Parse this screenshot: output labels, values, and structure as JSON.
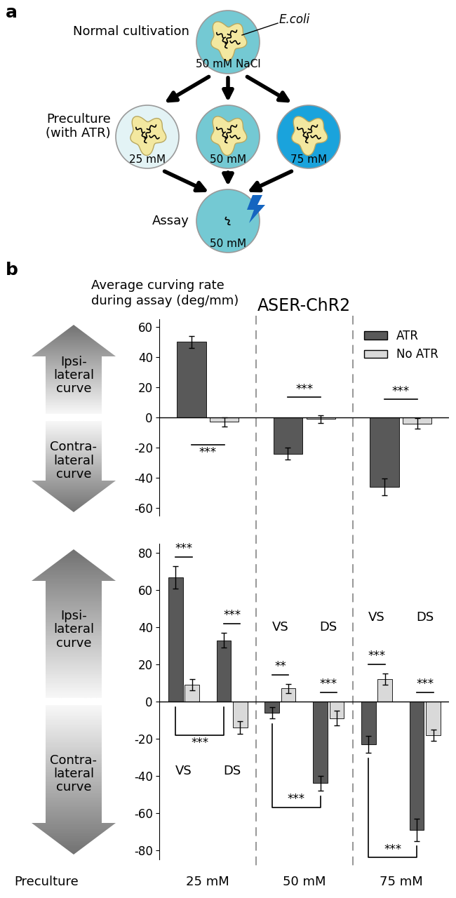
{
  "panel_a": {
    "label": "a",
    "normal": {
      "label": "Normal cultivation",
      "bacteria": "E.coli",
      "medium": "50 mM NaCl"
    },
    "preculture": {
      "label": "Preculture\n(with ATR)",
      "plates": [
        "25 mM",
        "50 mM",
        "75 mM"
      ]
    },
    "assay": {
      "label": "Assay",
      "medium": "50 mM"
    }
  },
  "panel_b": {
    "label": "b",
    "y_label": "Average curving rate\nduring assay (deg/mm)",
    "title": "ASER-ChR2",
    "arrow_labels": {
      "up": "Ipsi-\nlateral\ncurve",
      "down": "Contra-\nlateral\ncurve"
    },
    "x_label": "Preculture"
  },
  "chart_data": [
    {
      "type": "bar",
      "categories": [
        "25 mM",
        "50 mM",
        "75 mM"
      ],
      "series": [
        {
          "name": "ATR",
          "color": "#595959",
          "values": [
            50,
            -24,
            -46
          ],
          "errors": [
            4,
            4,
            5.5
          ]
        },
        {
          "name": "No ATR",
          "color": "#d9d9d9",
          "values": [
            -3,
            -1,
            -4
          ],
          "errors": [
            3,
            2.5,
            3.5
          ]
        }
      ],
      "significance": [
        "***",
        "***",
        "***"
      ],
      "ylim": [
        -65,
        65
      ],
      "yticks": [
        -60,
        -40,
        -20,
        0,
        20,
        40,
        60
      ],
      "legend": "upper right",
      "tick_labels": "y"
    },
    {
      "type": "bar",
      "categories": [
        "VS",
        "DS",
        "VS",
        "DS",
        "VS",
        "DS"
      ],
      "series": [
        {
          "name": "ATR",
          "color": "#595959",
          "values": [
            67,
            33,
            -6,
            -44,
            -23,
            -69
          ],
          "errors": [
            6,
            4,
            3,
            4,
            4.5,
            6
          ]
        },
        {
          "name": "No ATR",
          "color": "#d9d9d9",
          "values": [
            9,
            -14,
            7,
            -9,
            12,
            -18
          ],
          "errors": [
            3,
            3.5,
            2.5,
            4,
            3,
            3
          ]
        }
      ],
      "significance": [
        "***",
        "***",
        "**",
        "***",
        "***",
        "***"
      ],
      "pair_significance": [
        "***",
        "***",
        "***"
      ],
      "ylim": [
        -85,
        85
      ],
      "yticks": [
        -80,
        -60,
        -40,
        -20,
        0,
        20,
        40,
        60,
        80
      ],
      "tick_labels": "y"
    }
  ]
}
